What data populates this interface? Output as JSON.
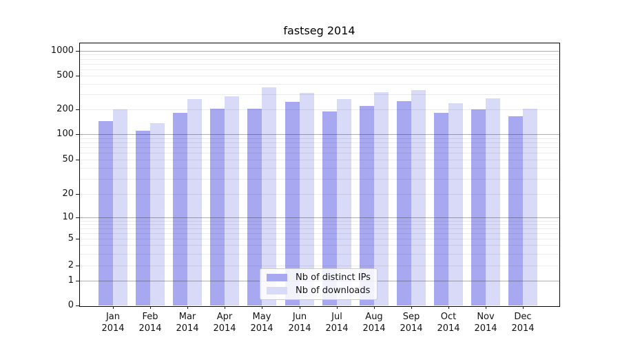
{
  "title": "fastseg 2014",
  "colors": {
    "ips_bar": "#a8a8f0",
    "downloads_bar": "#d9d9f8",
    "axis": "#000000",
    "grid_minor": "#ebebeb",
    "grid_major": "#adadad",
    "legend_border": "#cccccc"
  },
  "legend": {
    "items": [
      {
        "label": "Nb of distinct IPs",
        "color": "#a8a8f0"
      },
      {
        "label": "Nb of downloads",
        "color": "#d9d9f8"
      }
    ]
  },
  "chart_data": {
    "type": "bar",
    "title": "fastseg 2014",
    "categories": [
      "Jan 2014",
      "Feb 2014",
      "Mar 2014",
      "Apr 2014",
      "May 2014",
      "Jun 2014",
      "Jul 2014",
      "Aug 2014",
      "Sep 2014",
      "Oct 2014",
      "Nov 2014",
      "Dec 2014"
    ],
    "series": [
      {
        "name": "Nb of distinct IPs",
        "color": "#a8a8f0",
        "values": [
          145,
          110,
          180,
          205,
          205,
          245,
          190,
          220,
          250,
          180,
          200,
          165
        ]
      },
      {
        "name": "Nb of downloads",
        "color": "#d9d9f8",
        "values": [
          200,
          135,
          265,
          285,
          365,
          315,
          265,
          320,
          340,
          235,
          270,
          205
        ]
      }
    ],
    "xlabel": "",
    "ylabel": "",
    "yscale": "symlog",
    "y_ticks": [
      0,
      1,
      2,
      5,
      10,
      20,
      50,
      100,
      200,
      500,
      1000
    ],
    "ylim": [
      0,
      1260
    ],
    "grid": true,
    "legend_position": "lower center"
  }
}
